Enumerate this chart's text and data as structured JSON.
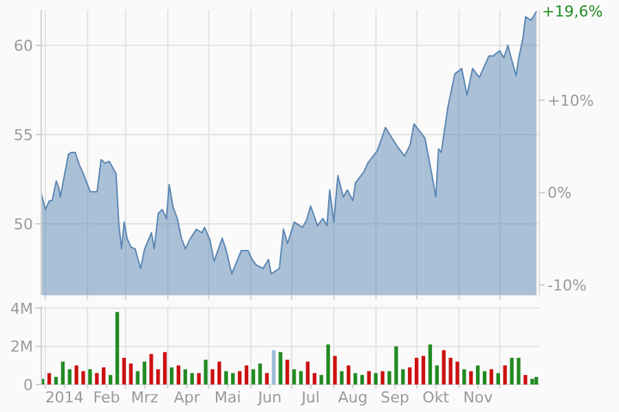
{
  "chart_data": [
    {
      "type": "area",
      "xlim": [
        "2013-12-29",
        "2014-12-30"
      ],
      "ylim": [
        46,
        62
      ],
      "yticks": [
        50,
        55,
        60
      ],
      "y2lim": [
        -11.1,
        19.8
      ],
      "y2ticks": [
        {
          "value": -10,
          "label": "-10%"
        },
        {
          "value": 0,
          "label": "0%"
        },
        {
          "value": 10,
          "label": "+10%"
        }
      ],
      "tick_labels": "y",
      "grid": true,
      "xticks": [
        {
          "value": "2014-01-01",
          "label": null
        },
        {
          "value": "2014-02-01",
          "label": null
        },
        {
          "value": "2014-03-01",
          "label": null
        },
        {
          "value": "2014-04-01",
          "label": null
        },
        {
          "value": "2014-05-01",
          "label": null
        },
        {
          "value": "2014-06-01",
          "label": null
        },
        {
          "value": "2014-07-01",
          "label": null
        },
        {
          "value": "2014-08-01",
          "label": null
        },
        {
          "value": "2014-09-01",
          "label": null
        },
        {
          "value": "2014-10-01",
          "label": null
        },
        {
          "value": "2014-11-01",
          "label": null
        },
        {
          "value": "2014-12-01",
          "label": null
        }
      ],
      "annotations": [
        {
          "text": "+19,6%",
          "x": "2014-12-28",
          "y": 61.9
        }
      ],
      "x": [
        "2013-12-29",
        "2014-01-01",
        "2014-01-04",
        "2014-01-06",
        "2014-01-09",
        "2014-01-11",
        "2014-01-12",
        "2014-01-18",
        "2014-01-20",
        "2014-01-23",
        "2014-01-26",
        "2014-01-29",
        "2014-02-03",
        "2014-02-08",
        "2014-02-11",
        "2014-02-14",
        "2014-02-17",
        "2014-02-22",
        "2014-02-24",
        "2014-02-26",
        "2014-02-28",
        "2014-03-02",
        "2014-03-05",
        "2014-03-08",
        "2014-03-12",
        "2014-03-15",
        "2014-03-20",
        "2014-03-22",
        "2014-03-25",
        "2014-03-28",
        "2014-03-31",
        "2014-04-02",
        "2014-04-05",
        "2014-04-08",
        "2014-04-11",
        "2014-04-14",
        "2014-04-17",
        "2014-04-22",
        "2014-04-26",
        "2014-04-28",
        "2014-05-02",
        "2014-05-05",
        "2014-05-11",
        "2014-05-14",
        "2014-05-18",
        "2014-05-25",
        "2014-05-30",
        "2014-06-02",
        "2014-06-05",
        "2014-06-10",
        "2014-06-14",
        "2014-06-16",
        "2014-06-22",
        "2014-06-25",
        "2014-06-28",
        "2014-07-03",
        "2014-07-09",
        "2014-07-12",
        "2014-07-15",
        "2014-07-20",
        "2014-07-24",
        "2014-07-27",
        "2014-07-29",
        "2014-08-01",
        "2014-08-04",
        "2014-08-08",
        "2014-08-11",
        "2014-08-15",
        "2014-08-17",
        "2014-08-23",
        "2014-08-26",
        "2014-09-02",
        "2014-09-08",
        "2014-09-12",
        "2014-09-17",
        "2014-09-22",
        "2014-09-26",
        "2014-09-29",
        "2014-10-07",
        "2014-10-12",
        "2014-10-15",
        "2014-10-17",
        "2014-10-19",
        "2014-10-24",
        "2014-10-29",
        "2014-11-03",
        "2014-11-07",
        "2014-11-11",
        "2014-11-16",
        "2014-11-23",
        "2014-11-26",
        "2014-12-01",
        "2014-12-04",
        "2014-12-07",
        "2014-12-09",
        "2014-12-13",
        "2014-12-15",
        "2014-12-18",
        "2014-12-20",
        "2014-12-24",
        "2014-12-28"
      ],
      "series": [
        {
          "color": "#5a86b3",
          "values": [
            51.7,
            50.8,
            51.3,
            51.3,
            52.4,
            52.0,
            51.5,
            53.9,
            54.0,
            54.0,
            53.3,
            52.8,
            51.8,
            51.8,
            53.6,
            53.4,
            53.5,
            52.8,
            50.0,
            48.6,
            50.1,
            49.2,
            48.7,
            48.6,
            47.5,
            48.6,
            49.5,
            48.6,
            50.6,
            50.8,
            50.3,
            52.2,
            50.9,
            50.3,
            49.2,
            48.6,
            49.1,
            49.7,
            49.5,
            49.8,
            49.1,
            47.9,
            49.2,
            48.5,
            47.2,
            48.5,
            48.5,
            48.0,
            47.7,
            47.5,
            48.0,
            47.2,
            47.5,
            49.7,
            48.9,
            50.1,
            49.8,
            50.2,
            51.0,
            49.9,
            50.3,
            49.9,
            51.9,
            50.1,
            52.7,
            51.5,
            51.9,
            51.3,
            52.3,
            52.9,
            53.4,
            54.1,
            55.4,
            54.9,
            54.3,
            53.8,
            54.4,
            55.6,
            54.8,
            52.8,
            51.5,
            54.2,
            54.0,
            56.6,
            58.4,
            58.7,
            57.2,
            58.7,
            58.2,
            59.4,
            59.4,
            59.7,
            59.3,
            60.0,
            59.4,
            58.3,
            59.3,
            60.4,
            61.6,
            61.4,
            61.9
          ]
        }
      ]
    },
    {
      "type": "bar",
      "xlim": [
        "2013-12-29",
        "2014-12-30"
      ],
      "ylim": [
        0,
        4.1
      ],
      "yticks": [
        0,
        {
          "value": 2,
          "label": "2M"
        },
        {
          "value": 4,
          "label": "4M"
        }
      ],
      "grid": true,
      "xticks": [
        {
          "value": "2014-01-01",
          "label": null
        },
        {
          "value": "2014-01-15",
          "label": "2014"
        },
        {
          "value": "2014-02-01",
          "label": null
        },
        {
          "value": "2014-02-15",
          "label": "Feb"
        },
        {
          "value": "2014-03-01",
          "label": null
        },
        {
          "value": "2014-03-15",
          "label": "Mrz"
        },
        {
          "value": "2014-04-01",
          "label": null
        },
        {
          "value": "2014-04-15",
          "label": "Apr"
        },
        {
          "value": "2014-05-01",
          "label": null
        },
        {
          "value": "2014-05-15",
          "label": "Mai"
        },
        {
          "value": "2014-06-01",
          "label": null
        },
        {
          "value": "2014-06-15",
          "label": "Jun"
        },
        {
          "value": "2014-07-01",
          "label": null
        },
        {
          "value": "2014-07-15",
          "label": "Jul"
        },
        {
          "value": "2014-08-01",
          "label": null
        },
        {
          "value": "2014-08-15",
          "label": "Aug"
        },
        {
          "value": "2014-09-01",
          "label": null
        },
        {
          "value": "2014-09-15",
          "label": "Sep"
        },
        {
          "value": "2014-10-01",
          "label": null
        },
        {
          "value": "2014-10-15",
          "label": "Okt"
        },
        {
          "value": "2014-11-01",
          "label": null
        },
        {
          "value": "2014-11-15",
          "label": "Nov"
        },
        {
          "value": "2014-12-01",
          "label": null
        }
      ],
      "x": [
        "2013-12-30",
        "2014-01-04",
        "2014-01-09",
        "2014-01-14",
        "2014-01-19",
        "2014-01-24",
        "2014-01-29",
        "2014-02-03",
        "2014-02-08",
        "2014-02-13",
        "2014-02-18",
        "2014-02-23",
        "2014-02-28",
        "2014-03-05",
        "2014-03-10",
        "2014-03-15",
        "2014-03-20",
        "2014-03-25",
        "2014-03-30",
        "2014-04-04",
        "2014-04-09",
        "2014-04-14",
        "2014-04-19",
        "2014-04-24",
        "2014-04-29",
        "2014-05-04",
        "2014-05-09",
        "2014-05-14",
        "2014-05-19",
        "2014-05-24",
        "2014-05-29",
        "2014-06-03",
        "2014-06-08",
        "2014-06-13",
        "2014-06-18",
        "2014-06-23",
        "2014-06-28",
        "2014-07-03",
        "2014-07-08",
        "2014-07-13",
        "2014-07-18",
        "2014-07-23",
        "2014-07-28",
        "2014-08-02",
        "2014-08-07",
        "2014-08-12",
        "2014-08-17",
        "2014-08-22",
        "2014-08-27",
        "2014-09-01",
        "2014-09-06",
        "2014-09-11",
        "2014-09-16",
        "2014-09-21",
        "2014-09-26",
        "2014-10-01",
        "2014-10-06",
        "2014-10-11",
        "2014-10-16",
        "2014-10-21",
        "2014-10-26",
        "2014-10-31",
        "2014-11-05",
        "2014-11-10",
        "2014-11-15",
        "2014-11-20",
        "2014-11-25",
        "2014-11-30",
        "2014-12-05",
        "2014-12-10",
        "2014-12-15",
        "2014-12-20",
        "2014-12-25",
        "2014-12-28"
      ],
      "values": [
        0.3,
        0.6,
        0.4,
        1.2,
        0.8,
        1.0,
        0.7,
        0.8,
        0.6,
        0.9,
        0.5,
        3.8,
        1.4,
        1.1,
        0.7,
        1.2,
        1.6,
        0.8,
        1.7,
        0.9,
        1.0,
        0.8,
        0.6,
        0.6,
        1.3,
        0.8,
        1.2,
        0.7,
        0.6,
        0.7,
        1.0,
        0.8,
        1.1,
        0.6,
        1.8,
        1.7,
        1.3,
        0.8,
        0.7,
        1.2,
        0.6,
        0.5,
        2.1,
        1.5,
        0.7,
        1.0,
        0.6,
        0.5,
        0.7,
        0.6,
        0.7,
        0.7,
        2.0,
        0.8,
        0.9,
        1.4,
        1.5,
        2.1,
        1.0,
        1.8,
        1.4,
        1.2,
        0.8,
        0.7,
        1.0,
        0.7,
        0.8,
        0.6,
        1.0,
        1.4,
        1.4,
        0.5,
        0.3,
        0.4
      ],
      "colors": [
        "#228b22",
        "#cc1111",
        "#228b22",
        "#228b22",
        "#228b22",
        "#cc1111",
        "#cc1111",
        "#228b22",
        "#cc1111",
        "#cc1111",
        "#228b22",
        "#228b22",
        "#cc1111",
        "#cc1111",
        "#228b22",
        "#228b22",
        "#cc1111",
        "#cc1111",
        "#cc1111",
        "#228b22",
        "#cc1111",
        "#228b22",
        "#228b22",
        "#cc1111",
        "#228b22",
        "#cc1111",
        "#cc1111",
        "#228b22",
        "#228b22",
        "#cc1111",
        "#cc1111",
        "#228b22",
        "#228b22",
        "#cc1111",
        "#9bbbd9",
        "#228b22",
        "#cc1111",
        "#228b22",
        "#228b22",
        "#cc1111",
        "#cc1111",
        "#228b22",
        "#228b22",
        "#cc1111",
        "#228b22",
        "#cc1111",
        "#228b22",
        "#228b22",
        "#cc1111",
        "#228b22",
        "#cc1111",
        "#228b22",
        "#228b22",
        "#228b22",
        "#cc1111",
        "#cc1111",
        "#cc1111",
        "#228b22",
        "#228b22",
        "#cc1111",
        "#cc1111",
        "#cc1111",
        "#228b22",
        "#cc1111",
        "#228b22",
        "#228b22",
        "#cc1111",
        "#228b22",
        "#cc1111",
        "#228b22",
        "#228b22",
        "#cc1111",
        "#228b22",
        "#228b22"
      ]
    }
  ]
}
